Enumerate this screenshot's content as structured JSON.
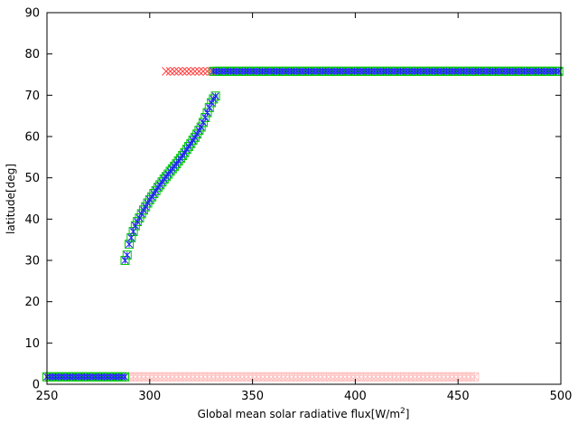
{
  "chart_data": {
    "type": "scatter",
    "title": "",
    "xlabel": "Global mean solar radiative flux[W/m",
    "xlabel_superscript": "2",
    "xlabel_suffix": "]",
    "ylabel": "latitude[deg]",
    "xlim": [
      250,
      500
    ],
    "ylim": [
      0,
      90
    ],
    "xticks": [
      250,
      300,
      350,
      400,
      450,
      500
    ],
    "xtick_labels": [
      "250",
      "300",
      "350",
      "400",
      "450",
      "500"
    ],
    "yticks": [
      0,
      10,
      20,
      30,
      40,
      50,
      60,
      70,
      80,
      90
    ],
    "ytick_labels": [
      "0",
      "10",
      "20",
      "30",
      "40",
      "50",
      "60",
      "70",
      "80",
      "90"
    ],
    "grid": false,
    "legend": "none",
    "series": [
      {
        "marker": "x",
        "color": "#ff4040",
        "segments": [
          {
            "x": [
              308,
              310,
              312,
              314,
              316,
              318,
              320,
              322,
              324,
              326,
              328,
              330,
              332
            ],
            "y": [
              75.8,
              75.8,
              75.8,
              75.8,
              75.8,
              75.8,
              75.8,
              75.8,
              75.8,
              75.8,
              75.8,
              75.8,
              75.8
            ]
          }
        ]
      },
      {
        "marker": "square-x",
        "color": "#ffc0c0",
        "segments": [
          {
            "x_range": [
              290,
              458
            ],
            "step": 2,
            "y": 1.8
          }
        ]
      },
      {
        "marker": "square",
        "color": "#00cc00",
        "segments": [
          {
            "x_range": [
              250,
              288
            ],
            "step": 1.4,
            "y": 1.8
          },
          {
            "x_range": [
              331,
              500
            ],
            "step": 1.4,
            "y": 75.8
          },
          {
            "x": [
              288,
              289,
              290,
              291,
              292,
              293,
              294,
              295,
              296,
              297,
              298,
              299,
              300,
              301,
              302,
              303,
              304,
              305,
              306,
              307,
              308,
              309,
              310,
              311,
              312,
              313,
              314,
              315,
              316,
              317,
              318,
              319,
              320,
              321,
              322,
              323,
              324,
              325,
              326,
              327,
              328,
              329,
              330,
              331,
              332
            ],
            "y": [
              30.0,
              31.3,
              33.9,
              35.5,
              37.0,
              38.4,
              39.4,
              40.3,
              41.3,
              42.2,
              43.0,
              43.9,
              44.7,
              45.4,
              46.2,
              46.9,
              47.7,
              48.3,
              49.0,
              49.7,
              50.3,
              50.9,
              51.6,
              52.2,
              52.8,
              53.4,
              54.1,
              54.7,
              55.4,
              56.1,
              56.9,
              57.6,
              58.3,
              59.1,
              59.8,
              60.6,
              61.5,
              62.3,
              63.4,
              64.6,
              65.8,
              67.0,
              68.2,
              69.1,
              69.8
            ]
          }
        ]
      },
      {
        "marker": "asterisk",
        "color": "#2020ff",
        "segments": [
          {
            "x_range": [
              250,
              288
            ],
            "step": 1.4,
            "y": 1.8
          },
          {
            "x_range": [
              331,
              500
            ],
            "step": 1.4,
            "y": 75.8
          },
          {
            "x": [
              288,
              289,
              290,
              291,
              292,
              293,
              294,
              295,
              296,
              297,
              298,
              299,
              300,
              301,
              302,
              303,
              304,
              305,
              306,
              307,
              308,
              309,
              310,
              311,
              312,
              313,
              314,
              315,
              316,
              317,
              318,
              319,
              320,
              321,
              322,
              323,
              324,
              325,
              326,
              327,
              328,
              329,
              330,
              331,
              332
            ],
            "y": [
              30.0,
              31.3,
              33.9,
              35.5,
              37.0,
              38.4,
              39.4,
              40.3,
              41.3,
              42.2,
              43.0,
              43.9,
              44.7,
              45.4,
              46.2,
              46.9,
              47.7,
              48.3,
              49.0,
              49.7,
              50.3,
              50.9,
              51.6,
              52.2,
              52.8,
              53.4,
              54.1,
              54.7,
              55.4,
              56.1,
              56.9,
              57.6,
              58.3,
              59.1,
              59.8,
              60.6,
              61.5,
              62.3,
              63.4,
              64.6,
              65.8,
              67.0,
              68.2,
              69.1,
              69.8
            ]
          }
        ]
      }
    ]
  }
}
